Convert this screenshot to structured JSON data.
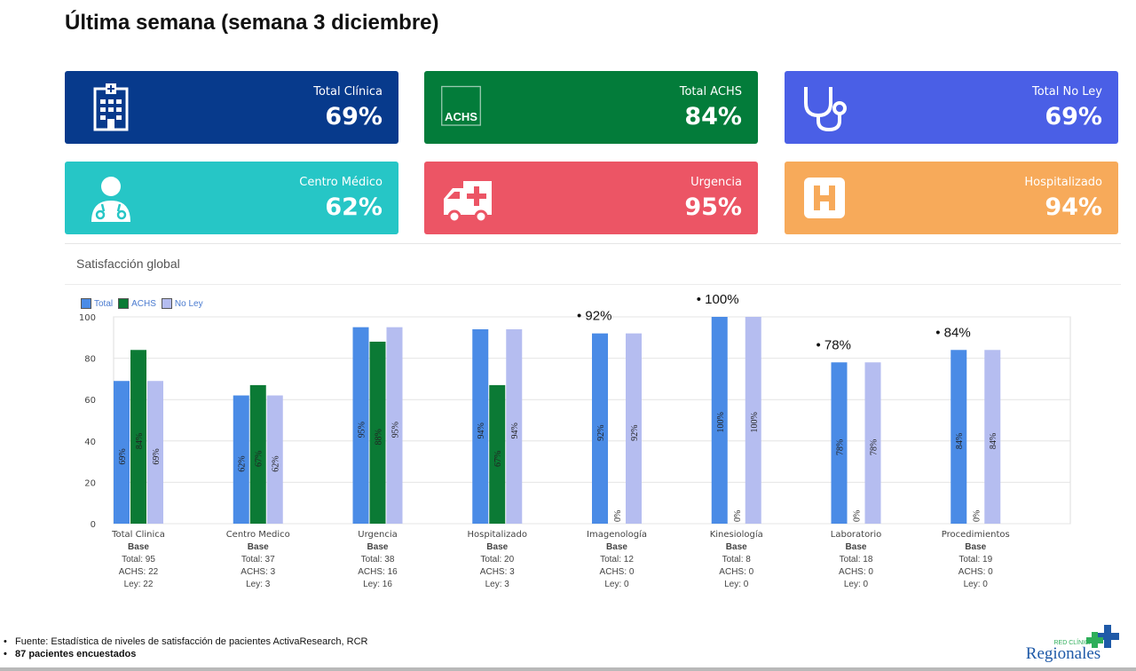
{
  "page": {
    "title": "Última semana (semana 3 diciembre)"
  },
  "cards": [
    {
      "label": "Total Clínica",
      "value": "69%",
      "color": "#073a8c",
      "icon": "hospital-building-icon"
    },
    {
      "label": "Total ACHS",
      "value": "84%",
      "color": "#037c3a",
      "icon": "achs-logo-icon",
      "icon_text": "ACHS"
    },
    {
      "label": "Total No Ley",
      "value": "69%",
      "color": "#4a5fe6",
      "icon": "stethoscope-icon"
    },
    {
      "label": "Centro Médico",
      "value": "62%",
      "color": "#26c6c6",
      "icon": "doctor-icon"
    },
    {
      "label": "Urgencia",
      "value": "95%",
      "color": "#ec5565",
      "icon": "ambulance-icon"
    },
    {
      "label": "Hospitalizado",
      "value": "94%",
      "color": "#f7aa5a",
      "icon": "hospital-h-icon"
    }
  ],
  "panel": {
    "title": "Satisfacción global"
  },
  "legend": [
    {
      "name": "Total",
      "color": "#4a8be6"
    },
    {
      "name": "ACHS",
      "color": "#0b7a35"
    },
    {
      "name": "No Ley",
      "color": "#b5bdf0"
    }
  ],
  "chart_data": {
    "type": "bar",
    "categories": [
      "Total Clinica",
      "Centro Medico",
      "Urgencia",
      "Hospitalizado",
      "Imagenología",
      "Kinesiología",
      "Laboratorio",
      "Procedimientos"
    ],
    "series": [
      {
        "name": "Total",
        "values": [
          69,
          62,
          95,
          94,
          92,
          100,
          78,
          84
        ],
        "labels": [
          "69%",
          "62%",
          "95%",
          "94%",
          "92%",
          "100%",
          "78%",
          "84%"
        ],
        "color": "#4a8be6"
      },
      {
        "name": "ACHS",
        "values": [
          84,
          67,
          88,
          67,
          0,
          0,
          0,
          0
        ],
        "labels": [
          "84%",
          "67%",
          "88%",
          "67%",
          "0%",
          "0%",
          "0%",
          "0%"
        ],
        "color": "#0b7a35"
      },
      {
        "name": "No Ley",
        "values": [
          69,
          62,
          95,
          94,
          92,
          100,
          78,
          84
        ],
        "labels": [
          "69%",
          "62%",
          "95%",
          "94%",
          "92%",
          "100%",
          "78%",
          "84%"
        ],
        "color": "#b5bdf0"
      }
    ],
    "yticks": [
      "0",
      "20",
      "40",
      "60",
      "80",
      "100"
    ],
    "ylim": [
      0,
      100
    ],
    "grid": true,
    "legend_position": "top-left",
    "annotations": [
      {
        "category": "Imagenología",
        "text": "•  92%"
      },
      {
        "category": "Kinesiología",
        "text": "•  100%"
      },
      {
        "category": "Laboratorio",
        "text": "•  78%"
      },
      {
        "category": "Procedimientos",
        "text": "•  84%"
      }
    ]
  },
  "bases": [
    {
      "title": "Base",
      "total": "Total: 95",
      "achs": "ACHS: 22",
      "ley": "Ley: 22"
    },
    {
      "title": "Base",
      "total": "Total: 37",
      "achs": "ACHS: 3",
      "ley": "Ley: 3"
    },
    {
      "title": "Base",
      "total": "Total: 38",
      "achs": "ACHS: 16",
      "ley": "Ley: 16"
    },
    {
      "title": "Base",
      "total": "Total: 20",
      "achs": "ACHS: 3",
      "ley": "Ley: 3"
    },
    {
      "title": "Base",
      "total": "Total: 12",
      "achs": "ACHS: 0",
      "ley": "Ley: 0"
    },
    {
      "title": "Base",
      "total": "Total: 8",
      "achs": "ACHS: 0",
      "ley": "Ley: 0"
    },
    {
      "title": "Base",
      "total": "Total: 18",
      "achs": "ACHS: 0",
      "ley": "Ley: 0"
    },
    {
      "title": "Base",
      "total": "Total: 19",
      "achs": "ACHS: 0",
      "ley": "Ley: 0"
    }
  ],
  "footer": {
    "bullet": "•",
    "source": "Fuente: Estadística de niveles de satisfacción de pacientes ActivaResearch, RCR",
    "patients": "87  pacientes encuestados"
  },
  "logo": {
    "top_text": "RED CLÍNICAS",
    "main_text": "Regionales",
    "icon": "medical-cross-logo-icon"
  }
}
